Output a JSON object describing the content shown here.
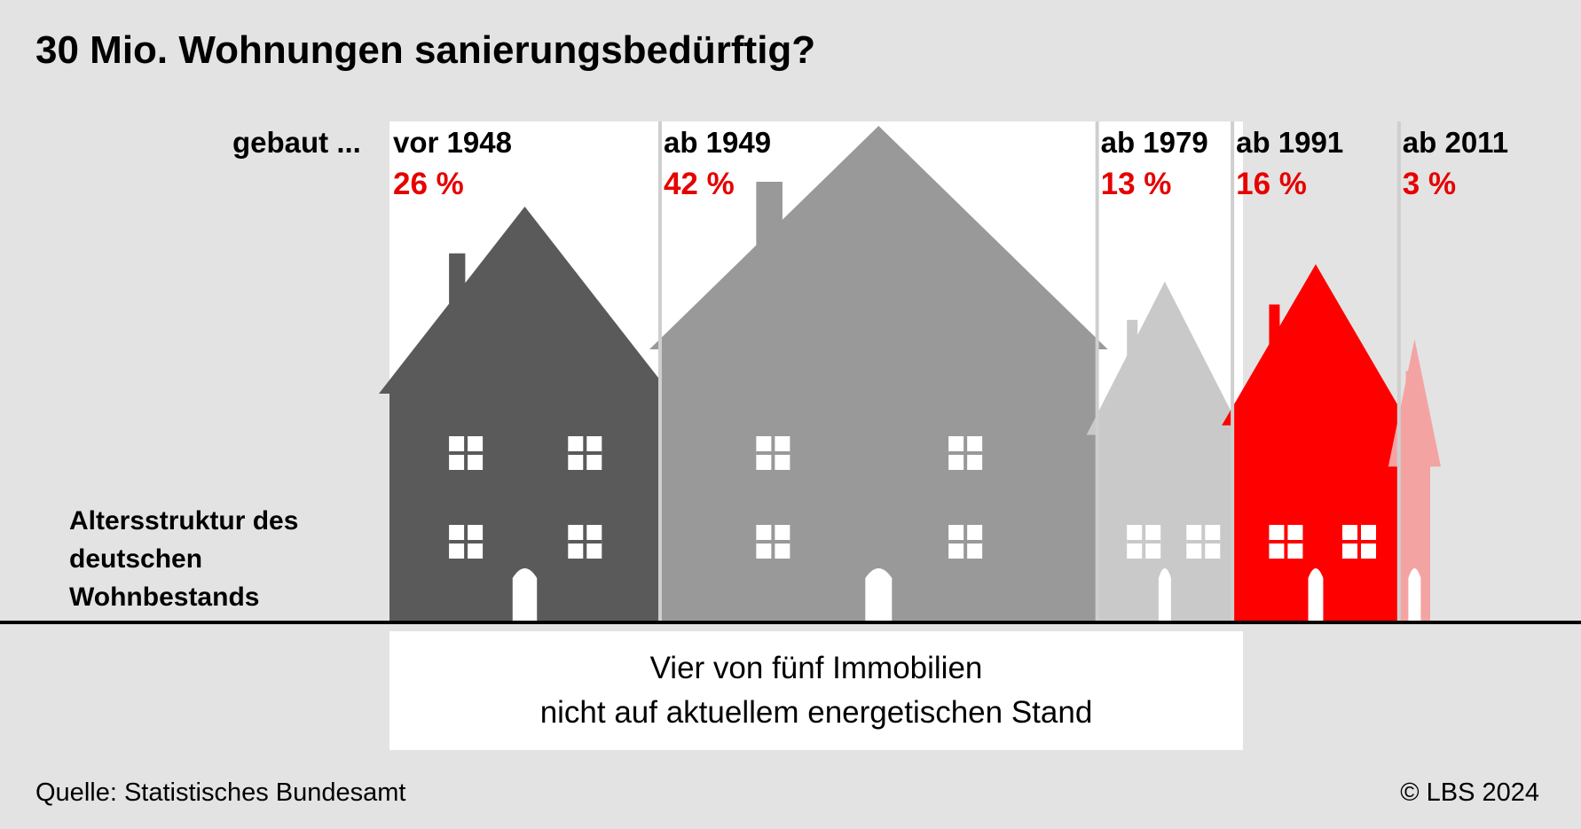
{
  "title": "30 Mio. Wohnungen sanierungsbedürftig?",
  "built_label": "gebaut ...",
  "age_structure_label": "Altersstruktur des deutschen Wohnbestands",
  "note_lines": [
    "Vier von fünf Immobilien",
    "nicht auf aktuellem energetischen Stand"
  ],
  "source": "Quelle: Statistisches Bundesamt",
  "copyright": "© LBS 2024",
  "colors": {
    "background": "#e3e3e3",
    "accent_red": "#e60000",
    "house_vor_1948": "#5a5a5a",
    "house_ab_1949": "#999999",
    "house_ab_1979": "#c9c9c9",
    "house_ab_1991": "#ff0000",
    "house_ab_2011": "#f4a3a3"
  },
  "chart_data": {
    "type": "bar",
    "categories": [
      "vor 1948",
      "ab 1949",
      "ab 1979",
      "ab 1991",
      "ab 2011"
    ],
    "values": [
      26,
      42,
      13,
      16,
      3
    ],
    "value_labels": [
      "26 %",
      "42 %",
      "13 %",
      "16 %",
      "3 %"
    ],
    "unit": "%",
    "ylabel": ""
  }
}
